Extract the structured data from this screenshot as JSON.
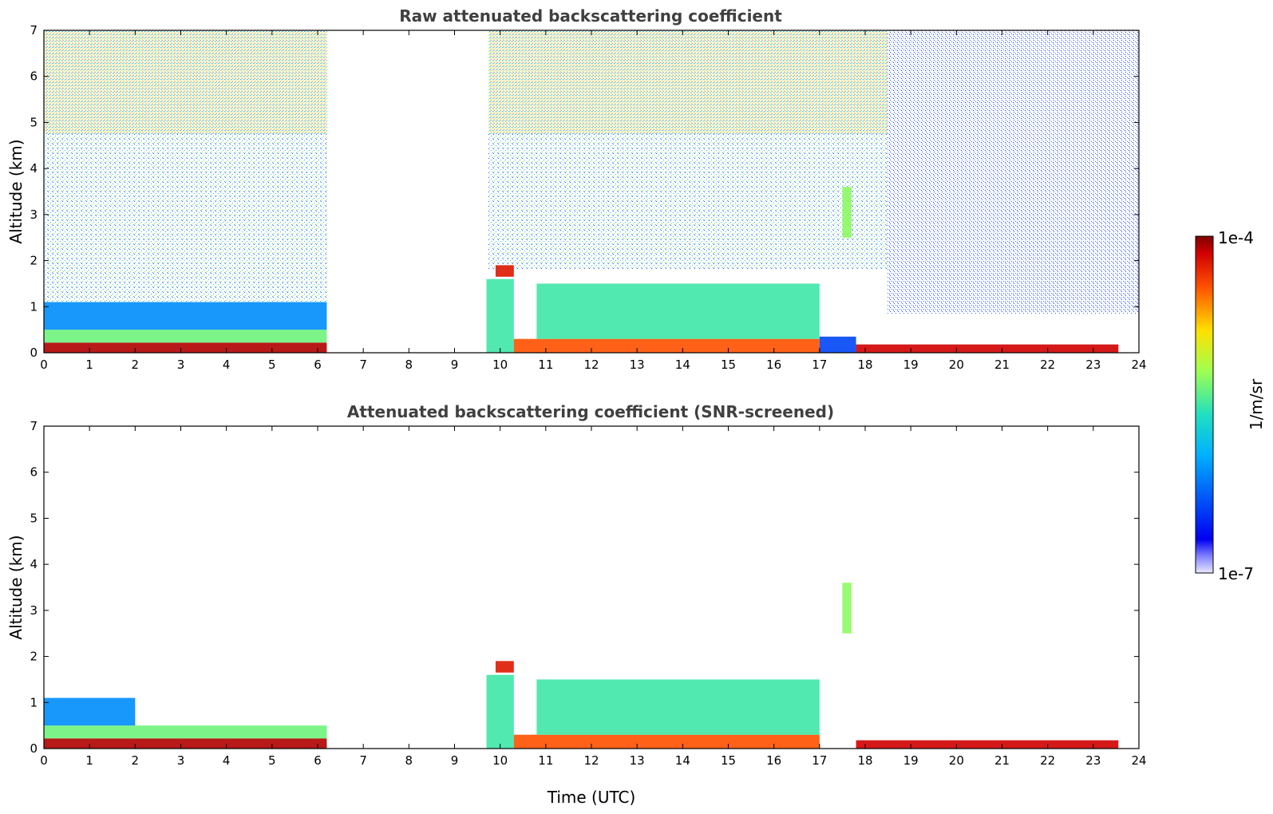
{
  "chart_data": [
    {
      "type": "heatmap",
      "id": "raw",
      "title": "Raw attenuated backscattering coefficient",
      "xlabel": "",
      "ylabel": "Altitude (km)",
      "xlim": [
        0,
        24
      ],
      "ylim": [
        0,
        7
      ],
      "xticks": [
        "0",
        "1",
        "2",
        "3",
        "4",
        "5",
        "6",
        "7",
        "8",
        "9",
        "10",
        "11",
        "12",
        "13",
        "14",
        "15",
        "16",
        "17",
        "18",
        "19",
        "20",
        "21",
        "22",
        "23",
        "24"
      ],
      "yticks": [
        "0",
        "1",
        "2",
        "3",
        "4",
        "5",
        "6",
        "7"
      ],
      "data_gap_utc": [
        6.2,
        9.7
      ],
      "data_end_utc": 23.55,
      "regions": [
        {
          "t0": 0.0,
          "t1": 6.2,
          "z0": 0.0,
          "z1": 0.22,
          "level": 0.97
        },
        {
          "t0": 0.0,
          "t1": 6.2,
          "z0": 0.22,
          "z1": 0.5,
          "level": 0.55
        },
        {
          "t0": 0.0,
          "t1": 6.2,
          "z0": 0.5,
          "z1": 1.1,
          "level": 0.3
        },
        {
          "t0": 9.7,
          "t1": 10.3,
          "z0": 0.0,
          "z1": 1.6,
          "level": 0.5
        },
        {
          "t0": 9.9,
          "t1": 10.3,
          "z0": 1.65,
          "z1": 1.9,
          "level": 0.92
        },
        {
          "t0": 10.3,
          "t1": 17.0,
          "z0": 0.0,
          "z1": 0.3,
          "level": 0.85
        },
        {
          "t0": 10.8,
          "t1": 17.0,
          "z0": 0.3,
          "z1": 1.5,
          "level": 0.5
        },
        {
          "t0": 17.0,
          "t1": 17.8,
          "z0": 0.0,
          "z1": 0.35,
          "level": 0.2
        },
        {
          "t0": 17.5,
          "t1": 17.7,
          "z0": 2.5,
          "z1": 3.6,
          "level": 0.58
        },
        {
          "t0": 17.8,
          "t1": 23.55,
          "z0": 0.0,
          "z1": 0.18,
          "level": 0.95
        }
      ]
    },
    {
      "type": "heatmap",
      "id": "snr",
      "title": "Attenuated backscattering coefficient (SNR-screened)",
      "xlabel": "Time (UTC)",
      "ylabel": "Altitude (km)",
      "xlim": [
        0,
        24
      ],
      "ylim": [
        0,
        7
      ],
      "xticks": [
        "0",
        "1",
        "2",
        "3",
        "4",
        "5",
        "6",
        "7",
        "8",
        "9",
        "10",
        "11",
        "12",
        "13",
        "14",
        "15",
        "16",
        "17",
        "18",
        "19",
        "20",
        "21",
        "22",
        "23",
        "24"
      ],
      "yticks": [
        "0",
        "1",
        "2",
        "3",
        "4",
        "5",
        "6",
        "7"
      ],
      "data_gap_utc": [
        6.2,
        9.7
      ],
      "data_end_utc": 23.55,
      "regions": [
        {
          "t0": 0.0,
          "t1": 6.2,
          "z0": 0.0,
          "z1": 0.22,
          "level": 0.97
        },
        {
          "t0": 0.0,
          "t1": 6.2,
          "z0": 0.22,
          "z1": 0.5,
          "level": 0.55
        },
        {
          "t0": 0.0,
          "t1": 2.0,
          "z0": 0.5,
          "z1": 1.1,
          "level": 0.3
        },
        {
          "t0": 9.7,
          "t1": 10.3,
          "z0": 0.0,
          "z1": 1.6,
          "level": 0.5
        },
        {
          "t0": 9.9,
          "t1": 10.3,
          "z0": 1.65,
          "z1": 1.9,
          "level": 0.92
        },
        {
          "t0": 10.3,
          "t1": 17.0,
          "z0": 0.0,
          "z1": 0.3,
          "level": 0.85
        },
        {
          "t0": 10.8,
          "t1": 17.0,
          "z0": 0.3,
          "z1": 1.5,
          "level": 0.5
        },
        {
          "t0": 17.5,
          "t1": 17.7,
          "z0": 2.5,
          "z1": 3.6,
          "level": 0.58
        },
        {
          "t0": 17.8,
          "t1": 23.55,
          "z0": 0.0,
          "z1": 0.18,
          "level": 0.95
        }
      ]
    }
  ],
  "colorbar": {
    "max_label": "1e-4",
    "min_label": "1e-7",
    "units_label": "1/m/sr"
  }
}
